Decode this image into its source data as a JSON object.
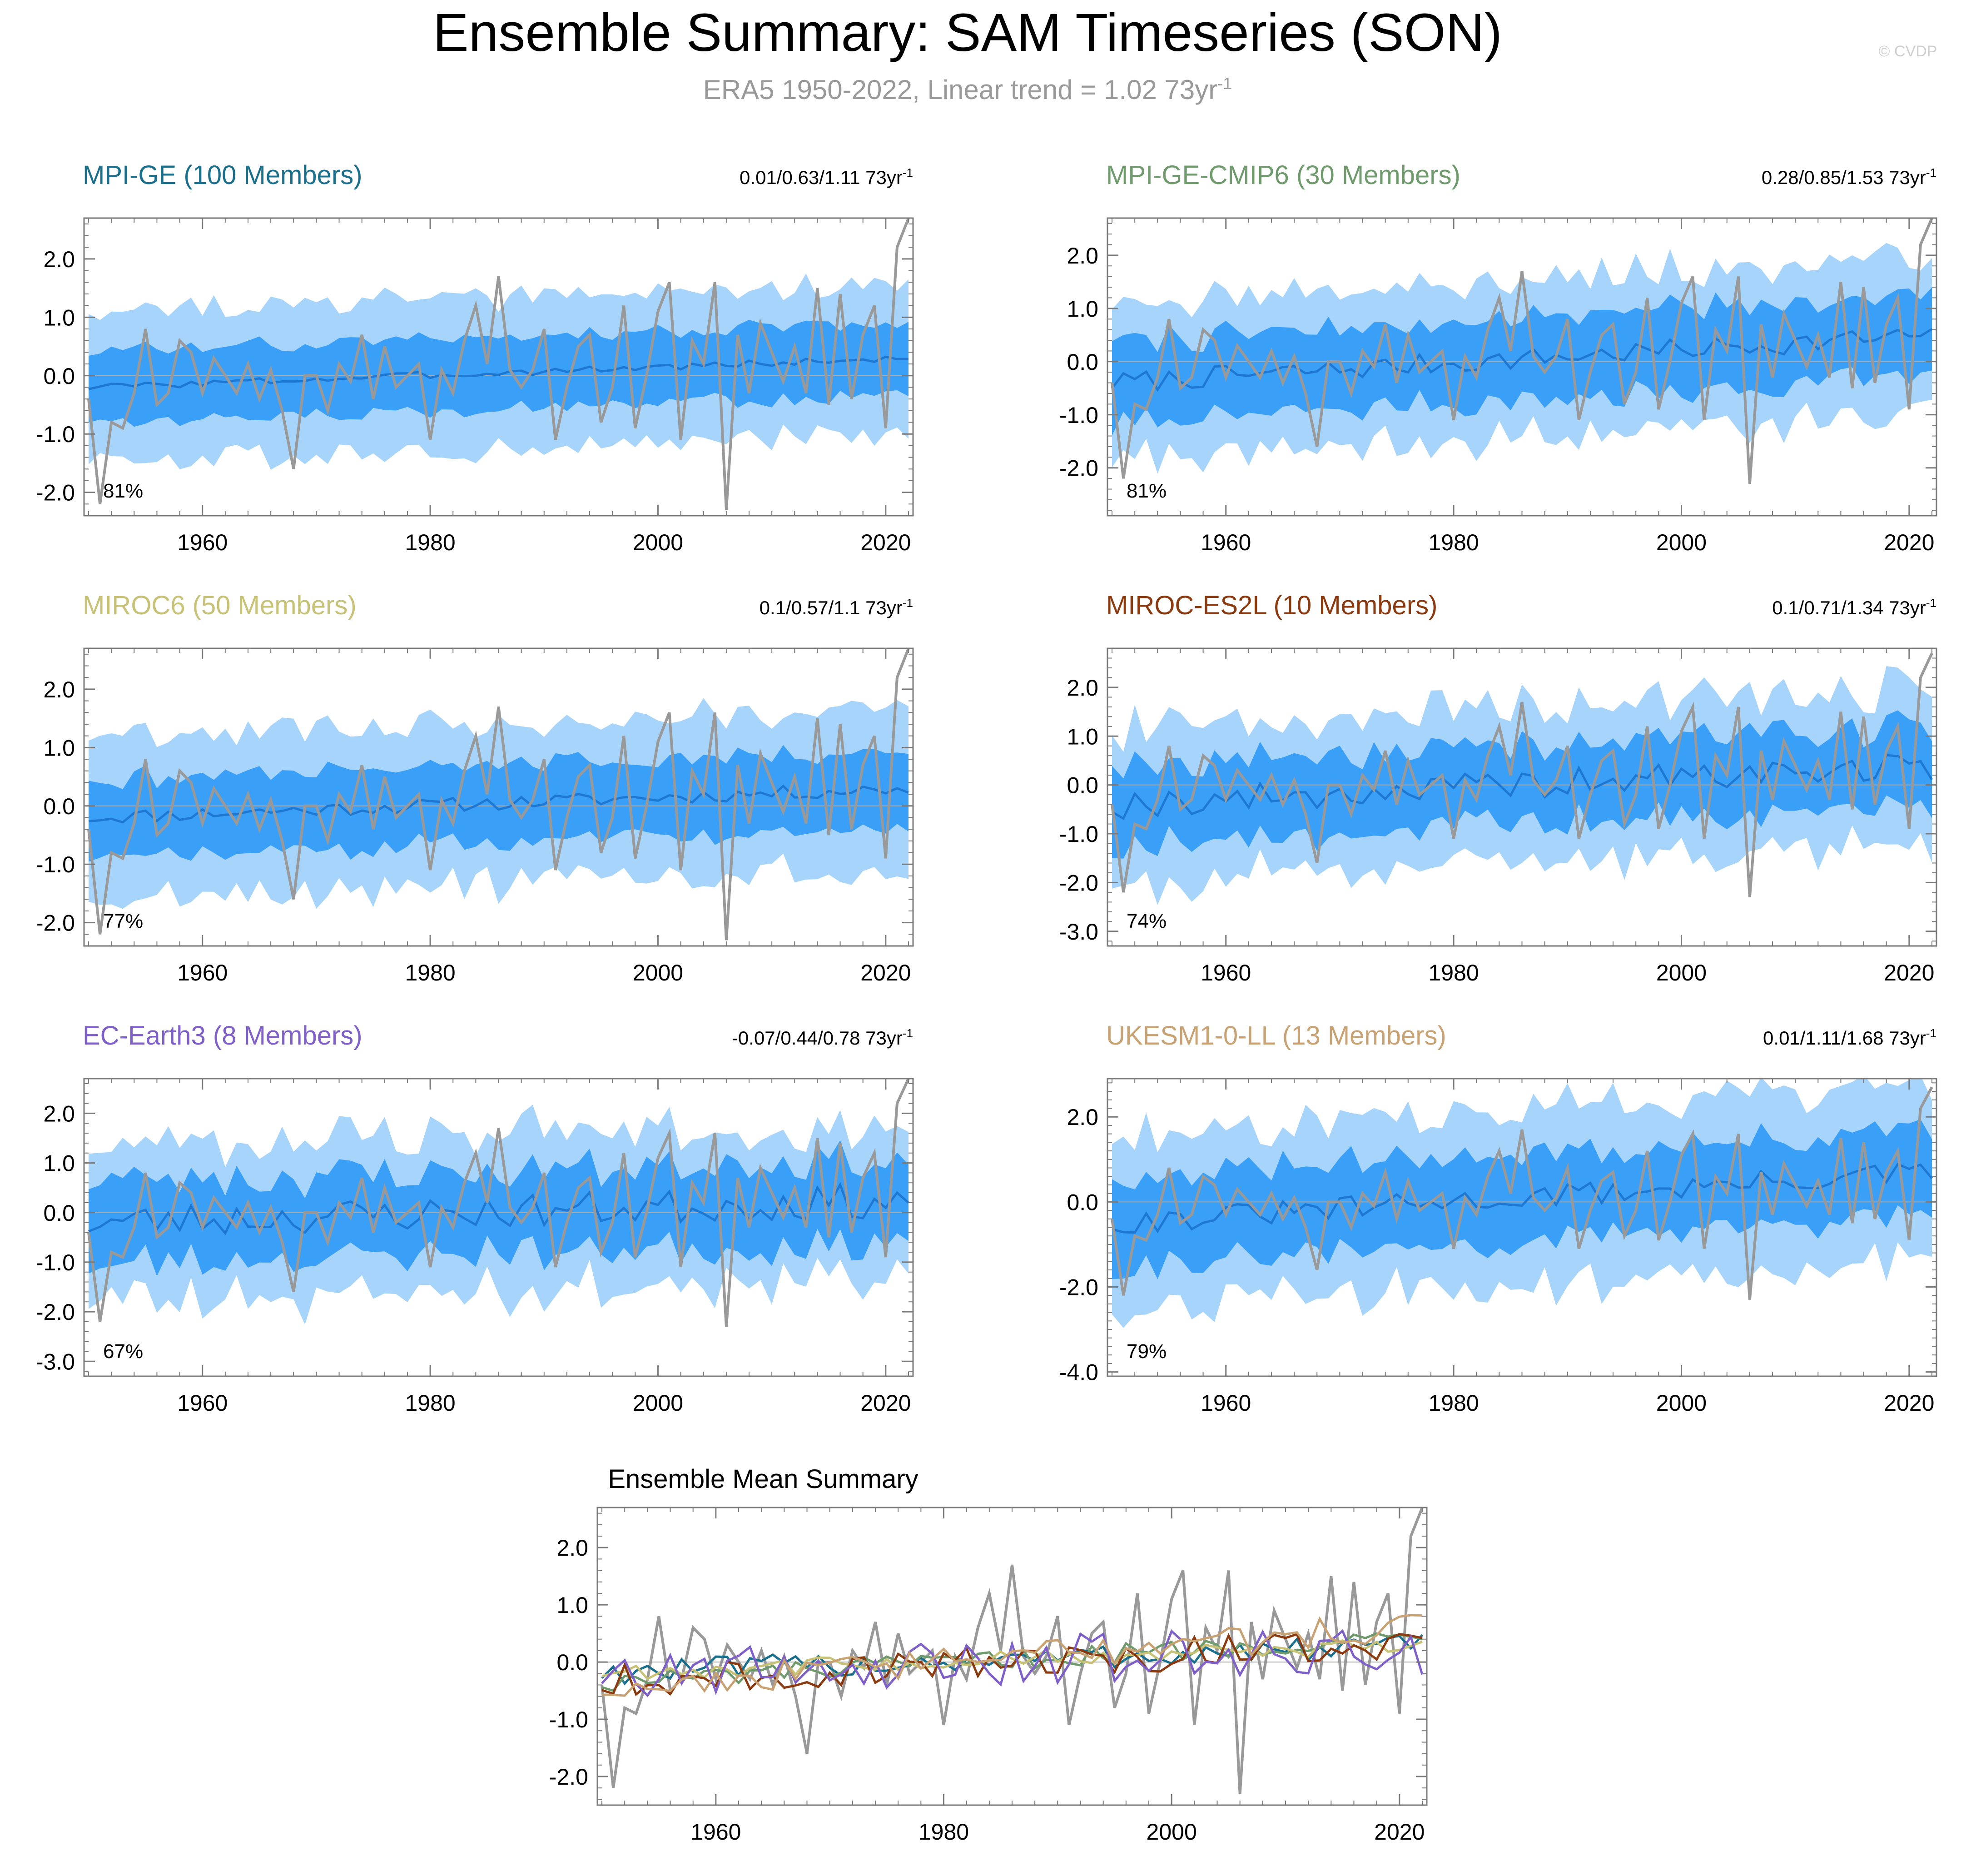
{
  "header": {
    "title": "Ensemble Summary: SAM Timeseries (SON)",
    "subtitle_main": "ERA5 1950-2022, Linear trend = 1.02 73yr",
    "subtitle_exp": "-1",
    "watermark": "© CVDP"
  },
  "colors": {
    "obs": "#999999",
    "band_outer": "#a6d4fb",
    "band_inner": "#3aa0f7",
    "ens_mean": "#1e78d2",
    "axis": "#7a7a7a",
    "zero_line": "#aaaaaa"
  },
  "unit_suffix": "73yr",
  "unit_exp": "-1",
  "chart_data": [
    {
      "type": "area",
      "id": "mpi-ge",
      "name": "MPI-GE (100 Members)",
      "color": "#1a6f8c",
      "trend_text": "0.01/0.63/1.11",
      "pct": "81%",
      "ylim": [
        -2.4,
        2.7
      ],
      "yticks": [
        "2.0",
        "1.0",
        "0.0",
        "-1.0",
        "-2.0"
      ],
      "ytick_values": [
        2,
        1,
        0,
        -1,
        -2
      ],
      "xticks": [
        "1960",
        "1980",
        "2000",
        "2020"
      ],
      "xlim": [
        1949.6,
        2022.4
      ],
      "mean_start": -0.2,
      "mean_end": 0.3,
      "inner_half": 0.6,
      "outer_half": 1.25,
      "noise": 0.06,
      "seed": 3
    },
    {
      "type": "area",
      "id": "mpi-ge-cmip6",
      "name": "MPI-GE-CMIP6 (30 Members)",
      "color": "#6e9a6c",
      "trend_text": "0.28/0.85/1.53",
      "pct": "81%",
      "ylim": [
        -2.9,
        2.7
      ],
      "yticks": [
        "2.0",
        "1.0",
        "0.0",
        "-1.0",
        "-2.0"
      ],
      "ytick_values": [
        2,
        1,
        0,
        -1,
        -2
      ],
      "xticks": [
        "1960",
        "1980",
        "2000",
        "2020"
      ],
      "xlim": [
        1949.6,
        2022.4
      ],
      "mean_start": -0.4,
      "mean_end": 0.5,
      "inner_half": 0.75,
      "outer_half": 1.45,
      "noise": 0.2,
      "seed": 7
    },
    {
      "type": "area",
      "id": "miroc6",
      "name": "MIROC6 (50 Members)",
      "color": "#c8c276",
      "trend_text": "0.1/0.57/1.1",
      "pct": "77%",
      "ylim": [
        -2.4,
        2.7
      ],
      "yticks": [
        "2.0",
        "1.0",
        "0.0",
        "-1.0",
        "-2.0"
      ],
      "ytick_values": [
        2,
        1,
        0,
        -1,
        -2
      ],
      "xticks": [
        "1960",
        "1980",
        "2000",
        "2020"
      ],
      "xlim": [
        1949.6,
        2022.4
      ],
      "mean_start": -0.2,
      "mean_end": 0.3,
      "inner_half": 0.65,
      "outer_half": 1.35,
      "noise": 0.12,
      "seed": 11
    },
    {
      "type": "area",
      "id": "miroc-es2l",
      "name": "MIROC-ES2L (10 Members)",
      "color": "#8b3a0f",
      "trend_text": "0.1/0.71/1.34",
      "pct": "74%",
      "ylim": [
        -3.3,
        2.8
      ],
      "yticks": [
        "2.0",
        "1.0",
        "0.0",
        "-1.0",
        "-2.0",
        "-3.0"
      ],
      "ytick_values": [
        2,
        1,
        0,
        -1,
        -2,
        -3
      ],
      "xticks": [
        "1960",
        "1980",
        "2000",
        "2020"
      ],
      "xlim": [
        1949.6,
        2022.4
      ],
      "mean_start": -0.4,
      "mean_end": 0.4,
      "inner_half": 0.8,
      "outer_half": 1.55,
      "noise": 0.3,
      "seed": 19
    },
    {
      "type": "area",
      "id": "ec-earth3",
      "name": "EC-Earth3 (8 Members)",
      "color": "#7f5fc8",
      "trend_text": "-0.07/0.44/0.78",
      "pct": "67%",
      "ylim": [
        -3.3,
        2.7
      ],
      "yticks": [
        "2.0",
        "1.0",
        "0.0",
        "-1.0",
        "-2.0",
        "-3.0"
      ],
      "ytick_values": [
        2,
        1,
        0,
        -1,
        -2,
        -3
      ],
      "xticks": [
        "1960",
        "1980",
        "2000",
        "2020"
      ],
      "xlim": [
        1949.6,
        2022.4
      ],
      "mean_start": -0.2,
      "mean_end": 0.25,
      "inner_half": 0.8,
      "outer_half": 1.55,
      "noise": 0.35,
      "seed": 23
    },
    {
      "type": "area",
      "id": "ukesm1-0-ll",
      "name": "UKESM1-0-LL (13 Members)",
      "color": "#c9a274",
      "trend_text": "0.01/1.11/1.68",
      "pct": "79%",
      "ylim": [
        -4.1,
        2.9
      ],
      "yticks": [
        "2.0",
        "0.0",
        "-2.0",
        "-4.0"
      ],
      "ytick_values": [
        2,
        0,
        -2,
        -4
      ],
      "xticks": [
        "1960",
        "1980",
        "2000",
        "2020"
      ],
      "xlim": [
        1949.6,
        2022.4
      ],
      "mean_start": -0.5,
      "mean_end": 0.7,
      "inner_half": 1.0,
      "outer_half": 2.0,
      "noise": 0.28,
      "seed": 31
    }
  ],
  "summary_chart": {
    "type": "line",
    "title": "Ensemble Mean Summary",
    "ylim": [
      -2.5,
      2.7
    ],
    "yticks": [
      "2.0",
      "1.0",
      "0.0",
      "-1.0",
      "-2.0"
    ],
    "ytick_values": [
      2,
      1,
      0,
      -1,
      -2
    ],
    "xticks": [
      "1960",
      "1980",
      "2000",
      "2020"
    ],
    "xlim": [
      1949.6,
      2022.4
    ]
  },
  "observations": {
    "name": "ERA5",
    "years": [
      1950,
      2022
    ],
    "values": [
      -0.4,
      -2.2,
      -0.8,
      -0.9,
      -0.3,
      0.8,
      -0.5,
      -0.3,
      0.6,
      0.4,
      -0.3,
      0.3,
      0.0,
      -0.3,
      0.2,
      -0.4,
      0.1,
      -0.6,
      -1.6,
      0.0,
      0.0,
      -0.6,
      0.2,
      -0.1,
      0.7,
      -0.4,
      0.5,
      -0.2,
      0.0,
      0.2,
      -1.1,
      0.1,
      -0.3,
      0.6,
      1.2,
      0.2,
      1.7,
      0.1,
      -0.2,
      0.1,
      0.8,
      -1.1,
      -0.2,
      0.5,
      0.7,
      -0.8,
      -0.2,
      1.2,
      -0.9,
      0.0,
      1.1,
      1.6,
      -1.1,
      0.6,
      0.2,
      1.6,
      -2.3,
      0.7,
      -0.3,
      0.9,
      0.4,
      -0.1,
      0.5,
      -0.3,
      1.5,
      -0.5,
      1.4,
      -0.4,
      0.7,
      1.2,
      -0.9,
      2.2,
      2.7
    ]
  }
}
